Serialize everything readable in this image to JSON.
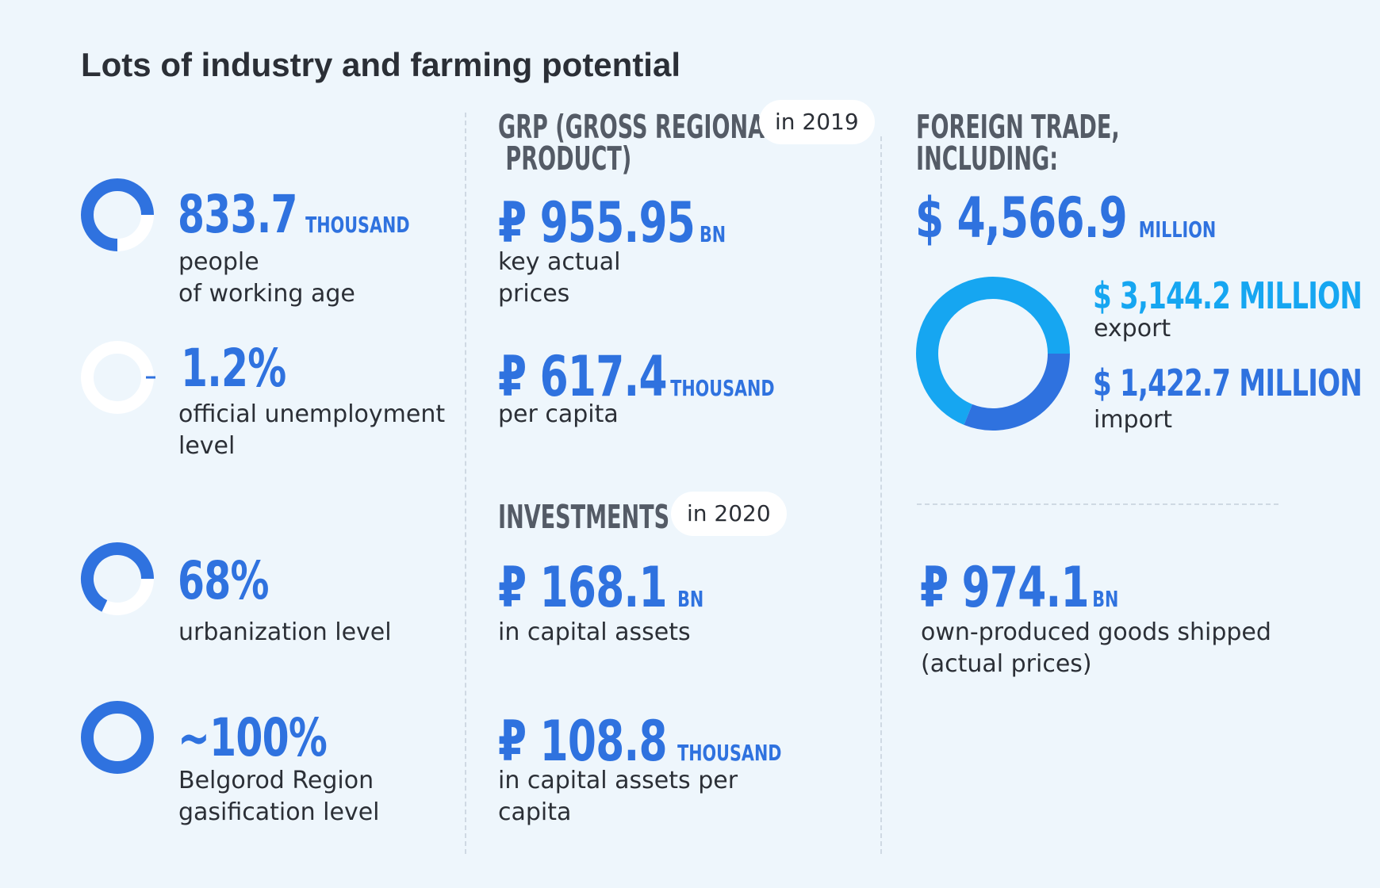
{
  "title": "Lots of industry and farming potential",
  "colors": {
    "background": "#eef6fc",
    "accent_blue": "#2f72df",
    "accent_cyan": "#16a6f1",
    "text_dark": "#2b2f36",
    "heading_gray": "#545b66",
    "ring_empty": "#ffffff"
  },
  "left": {
    "stats": [
      {
        "value": "833.7",
        "unit": "THOUSAND",
        "label_lines": [
          "people",
          "of working age"
        ],
        "ring_fraction": 0.75
      },
      {
        "value": "1.2%",
        "unit": "",
        "label_lines": [
          "official unemployment",
          "level"
        ],
        "ring_fraction": 0.012
      },
      {
        "value": "68%",
        "unit": "",
        "label_lines": [
          "urbanization level"
        ],
        "ring_fraction": 0.68
      },
      {
        "value": "~100%",
        "unit": "",
        "label_lines": [
          "Belgorod Region",
          "gasification level"
        ],
        "ring_fraction": 1.0
      }
    ]
  },
  "middle": {
    "grp": {
      "title_lines": [
        "GRP (GROSS REGIONAL",
        " PRODUCT)"
      ],
      "pill": "in 2019",
      "items": [
        {
          "value": "₽ 955.95",
          "unit": "BN",
          "label_lines": [
            "key actual",
            "prices"
          ]
        },
        {
          "value": "₽ 617.4",
          "unit": "THOUSAND",
          "label_lines": [
            "per capita"
          ]
        }
      ]
    },
    "investments": {
      "title": "INVESTMENTS",
      "pill": "in 2020",
      "items": [
        {
          "value": "₽ 168.1",
          "unit": "BN",
          "label_lines": [
            "in capital assets"
          ]
        },
        {
          "value": "₽ 108.8",
          "unit": "THOUSAND",
          "label_lines": [
            "in capital assets per",
            "capita"
          ]
        }
      ]
    }
  },
  "right": {
    "foreign_trade": {
      "title_lines": [
        "FOREIGN TRADE,",
        "INCLUDING:"
      ],
      "total_value": "$ 4,566.9",
      "total_unit": "MILLION",
      "export": {
        "value": "$ 3,144.2 MILLION",
        "label": "export",
        "amount": 3144.2
      },
      "import": {
        "value": "$ 1,422.7 MILLION",
        "label": "import",
        "amount": 1422.7
      }
    },
    "shipped": {
      "value": "₽ 974.1",
      "unit": "BN",
      "label_lines": [
        "own-produced goods shipped",
        "(actual prices)"
      ]
    }
  }
}
